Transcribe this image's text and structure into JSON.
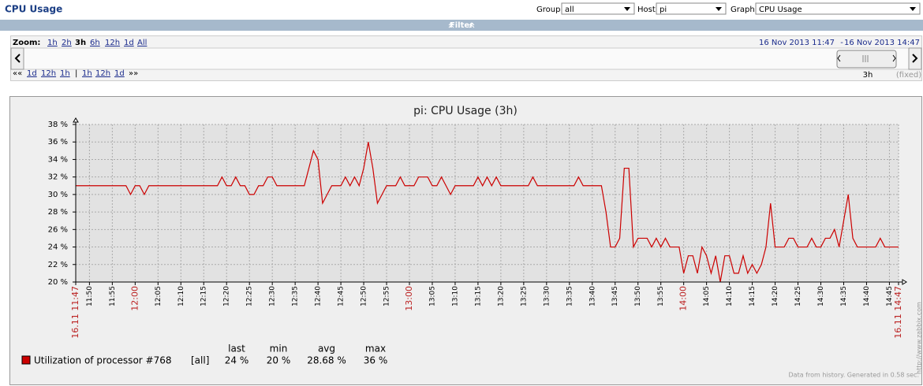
{
  "header": {
    "title": "CPU Usage",
    "group_label": "Group",
    "group_value": "all",
    "host_label": "Host",
    "host_value": "pi",
    "graph_label": "Graph",
    "graph_value": "CPU Usage"
  },
  "filter": {
    "label": "Filter"
  },
  "zoom": {
    "label": "Zoom:",
    "periods": [
      "1h",
      "2h",
      "3h",
      "6h",
      "12h",
      "1d",
      "All"
    ],
    "from": "16 Nov 2013 11:47",
    "separator": "-",
    "to": "16 Nov 2013 14:47",
    "nav": [
      "««",
      "1d",
      "12h",
      "1h",
      "|",
      "1h",
      "12h",
      "1d",
      "»»"
    ],
    "period": "3h",
    "fixed": "(fixed)"
  },
  "chart_data": {
    "type": "line",
    "title": "pi: CPU Usage (3h)",
    "x": [
      "11:47",
      "11:48",
      "11:49",
      "11:50",
      "11:51",
      "11:52",
      "11:53",
      "11:54",
      "11:55",
      "11:56",
      "11:57",
      "11:58",
      "11:59",
      "12:00",
      "12:01",
      "12:02",
      "12:03",
      "12:04",
      "12:05",
      "12:06",
      "12:07",
      "12:08",
      "12:09",
      "12:10",
      "12:11",
      "12:12",
      "12:13",
      "12:14",
      "12:15",
      "12:16",
      "12:17",
      "12:18",
      "12:19",
      "12:20",
      "12:21",
      "12:22",
      "12:23",
      "12:24",
      "12:25",
      "12:26",
      "12:27",
      "12:28",
      "12:29",
      "12:30",
      "12:31",
      "12:32",
      "12:33",
      "12:34",
      "12:35",
      "12:36",
      "12:37",
      "12:38",
      "12:39",
      "12:40",
      "12:41",
      "12:42",
      "12:43",
      "12:44",
      "12:45",
      "12:46",
      "12:47",
      "12:48",
      "12:49",
      "12:50",
      "12:51",
      "12:52",
      "12:53",
      "12:54",
      "12:55",
      "12:56",
      "12:57",
      "12:58",
      "12:59",
      "13:00",
      "13:01",
      "13:02",
      "13:03",
      "13:04",
      "13:05",
      "13:06",
      "13:07",
      "13:08",
      "13:09",
      "13:10",
      "13:11",
      "13:12",
      "13:13",
      "13:14",
      "13:15",
      "13:16",
      "13:17",
      "13:18",
      "13:19",
      "13:20",
      "13:21",
      "13:22",
      "13:23",
      "13:24",
      "13:25",
      "13:26",
      "13:27",
      "13:28",
      "13:29",
      "13:30",
      "13:31",
      "13:32",
      "13:33",
      "13:34",
      "13:35",
      "13:36",
      "13:37",
      "13:38",
      "13:39",
      "13:40",
      "13:41",
      "13:42",
      "13:43",
      "13:44",
      "13:45",
      "13:46",
      "13:47",
      "13:48",
      "13:49",
      "13:50",
      "13:51",
      "13:52",
      "13:53",
      "13:54",
      "13:55",
      "13:56",
      "13:57",
      "13:58",
      "13:59",
      "14:00",
      "14:01",
      "14:02",
      "14:03",
      "14:04",
      "14:05",
      "14:06",
      "14:07",
      "14:08",
      "14:09",
      "14:10",
      "14:11",
      "14:12",
      "14:13",
      "14:14",
      "14:15",
      "14:16",
      "14:17",
      "14:18",
      "14:19",
      "14:20",
      "14:21",
      "14:22",
      "14:23",
      "14:24",
      "14:25",
      "14:26",
      "14:27",
      "14:28",
      "14:29",
      "14:30",
      "14:31",
      "14:32",
      "14:33",
      "14:34",
      "14:35",
      "14:36",
      "14:37",
      "14:38",
      "14:39",
      "14:40",
      "14:41",
      "14:42",
      "14:43",
      "14:44",
      "14:45",
      "14:46",
      "14:47"
    ],
    "series": [
      {
        "name": "Utilization of processor #768",
        "color": "#cc0000",
        "values": [
          31,
          31,
          31,
          31,
          31,
          31,
          31,
          31,
          31,
          31,
          31,
          31,
          30,
          31,
          31,
          30,
          31,
          31,
          31,
          31,
          31,
          31,
          31,
          31,
          31,
          31,
          31,
          31,
          31,
          31,
          31,
          31,
          32,
          31,
          31,
          32,
          31,
          31,
          30,
          30,
          31,
          31,
          32,
          32,
          31,
          31,
          31,
          31,
          31,
          31,
          31,
          33,
          35,
          34,
          29,
          30,
          31,
          31,
          31,
          32,
          31,
          32,
          31,
          33,
          36,
          33,
          29,
          30,
          31,
          31,
          31,
          32,
          31,
          31,
          31,
          32,
          32,
          32,
          31,
          31,
          32,
          31,
          30,
          31,
          31,
          31,
          31,
          31,
          32,
          31,
          32,
          31,
          32,
          31,
          31,
          31,
          31,
          31,
          31,
          31,
          32,
          31,
          31,
          31,
          31,
          31,
          31,
          31,
          31,
          31,
          32,
          31,
          31,
          31,
          31,
          31,
          28,
          24,
          24,
          25,
          33,
          33,
          24,
          25,
          25,
          25,
          24,
          25,
          24,
          25,
          24,
          24,
          24,
          21,
          23,
          23,
          21,
          24,
          23,
          21,
          23,
          20,
          23,
          23,
          21,
          21,
          23,
          21,
          22,
          21,
          22,
          24,
          29,
          24,
          24,
          24,
          25,
          25,
          24,
          24,
          24,
          25,
          24,
          24,
          25,
          25,
          26,
          24,
          27,
          30,
          25,
          24,
          24,
          24,
          24,
          24,
          25,
          24,
          24,
          24,
          24
        ]
      }
    ],
    "ylim": [
      20,
      38
    ],
    "yticks": [
      {
        "value": 20,
        "label": "20 %"
      },
      {
        "value": 22,
        "label": "22 %"
      },
      {
        "value": 24,
        "label": "24 %"
      },
      {
        "value": 26,
        "label": "26 %"
      },
      {
        "value": 28,
        "label": "28 %"
      },
      {
        "value": 30,
        "label": "30 %"
      },
      {
        "value": 32,
        "label": "32 %"
      },
      {
        "value": 34,
        "label": "34 %"
      },
      {
        "value": 36,
        "label": "36 %"
      },
      {
        "value": 38,
        "label": "38 %"
      }
    ],
    "xticks": [
      {
        "value": "11:47",
        "label": "16.11 11:47"
      },
      "11:50",
      "11:55",
      "12:00",
      "12:05",
      "12:10",
      "12:15",
      "12:20",
      "12:25",
      "12:30",
      "12:35",
      "12:40",
      "12:45",
      "12:50",
      "12:55",
      "13:00",
      "13:05",
      "13:10",
      "13:15",
      "13:20",
      "13:25",
      "13:30",
      "13:35",
      "13:40",
      "13:45",
      "13:50",
      "13:55",
      "14:00",
      "14:05",
      "14:10",
      "14:15",
      "14:20",
      "14:25",
      "14:30",
      "14:35",
      "14:40",
      "14:45",
      {
        "value": "14:47",
        "label": "16.11 14:47"
      }
    ],
    "grid": true,
    "legend": {
      "function": "[all]",
      "columns": [
        "last",
        "min",
        "avg",
        "max"
      ],
      "cells": [
        "24 %",
        "20 %",
        "28.68 %",
        "36 %"
      ]
    },
    "watermark": "http://www.zabbix.com",
    "footer": "Data from history. Generated in 0.58 sec."
  }
}
